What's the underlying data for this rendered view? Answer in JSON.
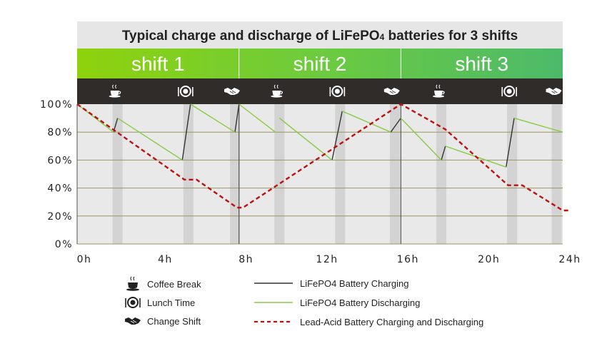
{
  "chart_data": {
    "type": "line",
    "title": "Typical charge and discharge of LiFePO",
    "title_subscript": "4",
    "title_suffix": " batteries for 3 shifts",
    "shifts": [
      {
        "label": "shift 1",
        "start": 0,
        "end": 8
      },
      {
        "label": "shift 2",
        "start": 8,
        "end": 16
      },
      {
        "label": "shift 3",
        "start": 16,
        "end": 24
      }
    ],
    "x_ticks": [
      "0h",
      "4h",
      "8h",
      "12h",
      "16h",
      "20h",
      "24h"
    ],
    "x_tick_values": [
      0,
      4,
      8,
      12,
      16,
      20,
      24
    ],
    "y_ticks": [
      "0%",
      "20%",
      "40%",
      "60%",
      "80%",
      "100%"
    ],
    "y_tick_values": [
      0,
      20,
      40,
      60,
      80,
      100
    ],
    "xlim": [
      0,
      24
    ],
    "ylim": [
      0,
      100
    ],
    "grid": true,
    "breaks": [
      {
        "type": "coffee",
        "x": 2
      },
      {
        "type": "lunch",
        "x": 5.5
      },
      {
        "type": "change",
        "x": 7.8
      },
      {
        "type": "coffee",
        "x": 10
      },
      {
        "type": "lunch",
        "x": 13
      },
      {
        "type": "change",
        "x": 15.7
      },
      {
        "type": "coffee",
        "x": 18
      },
      {
        "type": "lunch",
        "x": 21.5
      },
      {
        "type": "change",
        "x": 23.7
      }
    ],
    "series": [
      {
        "name": "LiFePO4 Battery Charging",
        "color": "#333333",
        "style": "solid",
        "segments": [
          [
            [
              1.8,
              80
            ],
            [
              2.0,
              90
            ]
          ],
          [
            [
              5.2,
              60
            ],
            [
              5.6,
              100
            ]
          ],
          [
            [
              7.8,
              80
            ],
            [
              8.0,
              100
            ]
          ],
          [
            [
              12.6,
              60
            ],
            [
              13.1,
              95
            ]
          ],
          [
            [
              15.5,
              80
            ],
            [
              16.0,
              90
            ]
          ],
          [
            [
              18.0,
              60
            ],
            [
              18.2,
              70
            ]
          ],
          [
            [
              21.2,
              55
            ],
            [
              21.6,
              90
            ]
          ]
        ]
      },
      {
        "name": "LiFePO4 Battery Discharging",
        "color": "#88cc44",
        "style": "solid",
        "segments": [
          [
            [
              0,
              100
            ],
            [
              1.8,
              80
            ]
          ],
          [
            [
              2.0,
              90
            ],
            [
              5.2,
              60
            ]
          ],
          [
            [
              5.6,
              100
            ],
            [
              7.8,
              80
            ]
          ],
          [
            [
              8.0,
              100
            ],
            [
              9.8,
              80
            ]
          ],
          [
            [
              10.0,
              90
            ],
            [
              12.6,
              60
            ]
          ],
          [
            [
              13.1,
              95
            ],
            [
              15.5,
              80
            ]
          ],
          [
            [
              16.0,
              90
            ],
            [
              18.0,
              60
            ]
          ],
          [
            [
              18.2,
              70
            ],
            [
              21.2,
              55
            ]
          ],
          [
            [
              21.6,
              90
            ],
            [
              24.0,
              80
            ]
          ]
        ]
      },
      {
        "name": "Lead-Acid Battery Charging and Discharging",
        "color": "#bb1111",
        "style": "dashed",
        "points": [
          [
            0,
            100
          ],
          [
            5.3,
            46
          ],
          [
            5.9,
            46
          ],
          [
            7.9,
            26
          ],
          [
            8.2,
            26
          ],
          [
            16.0,
            100
          ],
          [
            18.2,
            82
          ],
          [
            21.3,
            42
          ],
          [
            22.0,
            42
          ],
          [
            24.0,
            24
          ],
          [
            24.5,
            24
          ]
        ]
      }
    ],
    "legend": [
      {
        "icon": "coffee",
        "label": "Coffee Break"
      },
      {
        "icon": "lunch",
        "label": "Lunch Time"
      },
      {
        "icon": "change",
        "label": "Change Shift"
      },
      {
        "line": "solid-dark",
        "label": "LiFePO4 Battery Charging"
      },
      {
        "line": "solid-green",
        "label": "LiFePO4 Battery Discharging"
      },
      {
        "line": "dashed-red",
        "label": "Lead-Acid Battery Charging and Discharging"
      }
    ]
  }
}
